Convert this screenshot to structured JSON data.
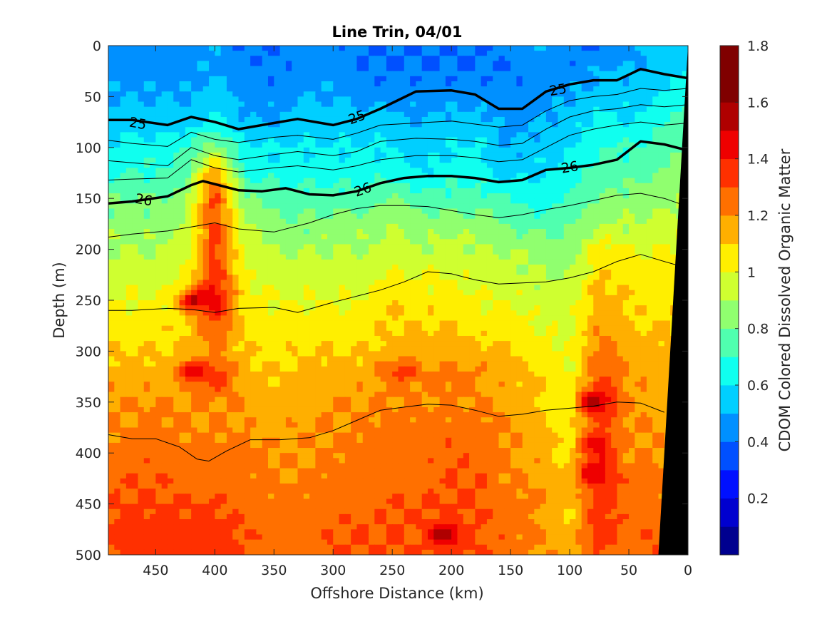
{
  "chart_data": {
    "type": "heatmap",
    "title": "Line Trin, 04/01",
    "xlabel": "Offshore Distance (km)",
    "ylabel": "Depth (m)",
    "xlim": [
      490,
      0
    ],
    "ylim": [
      0,
      500
    ],
    "x_reversed": true,
    "y_reversed": true,
    "xticks": [
      "450",
      "400",
      "350",
      "300",
      "250",
      "200",
      "150",
      "100",
      "50",
      "0"
    ],
    "xtick_values": [
      450,
      400,
      350,
      300,
      250,
      200,
      150,
      100,
      50,
      0
    ],
    "yticks": [
      "0",
      "50",
      "100",
      "150",
      "200",
      "250",
      "300",
      "350",
      "400",
      "450",
      "500"
    ],
    "ytick_values": [
      0,
      50,
      100,
      150,
      200,
      250,
      300,
      350,
      400,
      450,
      500
    ],
    "colorbar": {
      "label": "CDOM Colored Dissolved Organic Matter",
      "ticks": [
        "0.2",
        "0.4",
        "0.6",
        "0.8",
        "1",
        "1.2",
        "1.4",
        "1.6",
        "1.8"
      ],
      "tick_values": [
        0.2,
        0.4,
        0.6,
        0.8,
        1.0,
        1.2,
        1.4,
        1.6,
        1.8
      ],
      "range": [
        0,
        1.8
      ],
      "levels": [
        0,
        0.1,
        0.2,
        0.3,
        0.4,
        0.5,
        0.6,
        0.7,
        0.8,
        0.9,
        1.0,
        1.1,
        1.2,
        1.3,
        1.4,
        1.5,
        1.6,
        1.7,
        1.8
      ],
      "colors": [
        "#00008f",
        "#0000cf",
        "#0010ff",
        "#0050ff",
        "#0090ff",
        "#00cfff",
        "#10ffef",
        "#50ffaf",
        "#90ff6f",
        "#cfff30",
        "#ffef00",
        "#ffaf00",
        "#ff7000",
        "#ff3000",
        "#ef0000",
        "#af0000",
        "#800000",
        "#800000"
      ]
    },
    "distances_km": [
      0,
      25,
      50,
      75,
      100,
      125,
      150,
      175,
      200,
      225,
      250,
      275,
      300,
      325,
      350,
      375,
      400,
      425,
      450,
      475,
      490
    ],
    "depths_m": [
      0,
      25,
      50,
      75,
      100,
      125,
      150,
      175,
      200,
      225,
      250,
      275,
      300,
      325,
      350,
      375,
      400,
      425,
      450,
      475,
      500
    ],
    "cdom_values": [
      [
        0.55,
        0.55,
        0.45,
        0.4,
        0.4,
        0.5,
        0.45,
        0.4,
        0.4,
        0.4,
        0.4,
        0.4,
        0.45,
        0.45,
        0.4,
        0.4,
        0.5,
        0.45,
        0.45,
        0.45,
        0.45
      ],
      [
        0.6,
        0.55,
        0.5,
        0.5,
        0.45,
        0.45,
        0.4,
        0.4,
        0.4,
        0.4,
        0.4,
        0.4,
        0.45,
        0.45,
        0.4,
        0.45,
        0.5,
        0.45,
        0.45,
        0.45,
        0.45
      ],
      [
        0.7,
        0.6,
        0.55,
        0.55,
        0.5,
        0.45,
        0.45,
        0.45,
        0.45,
        0.45,
        0.45,
        0.45,
        0.5,
        0.5,
        0.45,
        0.45,
        0.55,
        0.5,
        0.5,
        0.5,
        0.5
      ],
      [
        0.75,
        0.7,
        0.6,
        0.65,
        0.55,
        0.5,
        0.45,
        0.55,
        0.55,
        0.5,
        0.55,
        0.55,
        0.55,
        0.55,
        0.5,
        0.5,
        0.65,
        0.55,
        0.55,
        0.55,
        0.55
      ],
      [
        0.8,
        0.75,
        0.7,
        0.7,
        0.6,
        0.55,
        0.5,
        0.6,
        0.6,
        0.55,
        0.6,
        0.6,
        0.6,
        0.6,
        0.6,
        0.65,
        0.85,
        0.7,
        0.65,
        0.65,
        0.6
      ],
      [
        0.85,
        0.8,
        0.75,
        0.75,
        0.65,
        0.6,
        0.55,
        0.65,
        0.65,
        0.6,
        0.65,
        0.65,
        0.65,
        0.65,
        0.65,
        0.7,
        1.2,
        0.75,
        0.7,
        0.7,
        0.7
      ],
      [
        0.9,
        0.85,
        0.85,
        0.8,
        0.7,
        0.65,
        0.7,
        0.75,
        0.75,
        0.75,
        0.8,
        0.75,
        0.75,
        0.75,
        0.75,
        0.8,
        1.35,
        0.85,
        0.8,
        0.8,
        0.8
      ],
      [
        0.95,
        0.95,
        0.9,
        0.9,
        0.8,
        0.75,
        0.8,
        0.85,
        0.85,
        0.85,
        0.9,
        0.85,
        0.85,
        0.8,
        0.85,
        0.9,
        1.35,
        0.9,
        0.85,
        0.85,
        0.85
      ],
      [
        1.0,
        1.0,
        1.0,
        1.05,
        0.85,
        0.85,
        0.9,
        0.9,
        0.95,
        0.9,
        0.95,
        0.9,
        0.9,
        0.9,
        0.9,
        0.95,
        1.35,
        0.95,
        0.9,
        0.9,
        0.9
      ],
      [
        1.05,
        1.05,
        1.05,
        1.1,
        0.9,
        0.9,
        0.95,
        0.95,
        1.0,
        1.0,
        1.0,
        0.95,
        0.95,
        0.95,
        0.95,
        1.0,
        1.4,
        1.0,
        0.95,
        0.95,
        0.95
      ],
      [
        1.1,
        1.05,
        1.1,
        1.15,
        0.95,
        0.95,
        1.0,
        1.0,
        1.05,
        1.05,
        1.1,
        1.0,
        1.0,
        1.0,
        1.0,
        1.05,
        1.5,
        1.05,
        1.0,
        1.0,
        1.0
      ],
      [
        1.1,
        1.1,
        1.1,
        1.2,
        0.95,
        1.0,
        1.05,
        1.05,
        1.1,
        1.1,
        1.1,
        1.05,
        1.05,
        1.05,
        1.05,
        1.1,
        1.3,
        1.1,
        1.05,
        1.05,
        1.05
      ],
      [
        1.1,
        1.15,
        1.15,
        1.25,
        1.0,
        1.05,
        1.1,
        1.15,
        1.15,
        1.15,
        1.15,
        1.1,
        1.1,
        1.1,
        1.05,
        1.1,
        1.2,
        1.1,
        1.1,
        1.1,
        1.1
      ],
      [
        1.1,
        1.15,
        1.2,
        1.3,
        1.0,
        1.1,
        1.15,
        1.2,
        1.25,
        1.2,
        1.25,
        1.15,
        1.15,
        1.15,
        1.1,
        1.15,
        1.4,
        1.15,
        1.15,
        1.15,
        1.15
      ],
      [
        1.1,
        1.15,
        1.2,
        1.45,
        1.0,
        1.1,
        1.15,
        1.2,
        1.2,
        1.2,
        1.2,
        1.2,
        1.2,
        1.15,
        1.15,
        1.2,
        1.2,
        1.2,
        1.2,
        1.2,
        1.2
      ],
      [
        1.1,
        1.2,
        1.2,
        1.3,
        1.05,
        1.15,
        1.2,
        1.25,
        1.25,
        1.25,
        1.25,
        1.2,
        1.2,
        1.2,
        1.15,
        1.2,
        1.2,
        1.2,
        1.25,
        1.2,
        1.2
      ],
      [
        1.1,
        1.2,
        1.2,
        1.4,
        1.05,
        1.15,
        1.2,
        1.25,
        1.3,
        1.25,
        1.25,
        1.25,
        1.2,
        1.2,
        1.2,
        1.25,
        1.25,
        1.25,
        1.25,
        1.25,
        1.25
      ],
      [
        1.1,
        1.25,
        1.25,
        1.4,
        1.1,
        1.2,
        1.2,
        1.3,
        1.3,
        1.25,
        1.25,
        1.25,
        1.25,
        1.2,
        1.2,
        1.25,
        1.25,
        1.25,
        1.3,
        1.3,
        1.25
      ],
      [
        1.1,
        1.25,
        1.25,
        1.35,
        1.1,
        1.2,
        1.25,
        1.3,
        1.3,
        1.3,
        1.3,
        1.25,
        1.25,
        1.25,
        1.25,
        1.25,
        1.3,
        1.3,
        1.3,
        1.3,
        1.3
      ],
      [
        1.1,
        1.3,
        1.25,
        1.4,
        1.1,
        1.2,
        1.25,
        1.3,
        1.35,
        1.3,
        1.3,
        1.3,
        1.3,
        1.25,
        1.25,
        1.3,
        1.35,
        1.35,
        1.35,
        1.35,
        1.3
      ],
      [
        1.1,
        1.3,
        1.25,
        1.3,
        1.15,
        1.2,
        1.25,
        1.3,
        1.35,
        1.3,
        1.3,
        1.3,
        1.3,
        1.25,
        1.25,
        1.3,
        1.35,
        1.35,
        1.35,
        1.35,
        1.3
      ]
    ],
    "hotspots": [
      {
        "x": 418,
        "y": 250,
        "value": 1.55
      },
      {
        "x": 418,
        "y": 320,
        "value": 1.5
      },
      {
        "x": 80,
        "y": 350,
        "value": 1.55
      },
      {
        "x": 80,
        "y": 390,
        "value": 1.45
      },
      {
        "x": 80,
        "y": 420,
        "value": 1.5
      },
      {
        "x": 207,
        "y": 480,
        "value": 1.55
      },
      {
        "x": 240,
        "y": 320,
        "value": 1.35
      },
      {
        "x": 450,
        "y": 480,
        "value": 1.4
      }
    ],
    "isopycnals": [
      {
        "label": "25",
        "bold": true,
        "label_x": [
          465,
          280,
          110
        ],
        "label_y": [
          76,
          70,
          43
        ],
        "x": [
          490,
          470,
          440,
          420,
          400,
          380,
          350,
          330,
          300,
          280,
          260,
          230,
          200,
          180,
          160,
          140,
          120,
          100,
          80,
          60,
          40,
          20,
          0
        ],
        "y": [
          73,
          73,
          78,
          70,
          75,
          82,
          76,
          72,
          78,
          72,
          62,
          45,
          44,
          48,
          62,
          62,
          45,
          38,
          34,
          34,
          23,
          28,
          32
        ]
      },
      {
        "label": "",
        "bold": false,
        "x": [
          490,
          470,
          440,
          420,
          400,
          380,
          350,
          330,
          300,
          280,
          260,
          230,
          200,
          180,
          160,
          140,
          120,
          100,
          80,
          60,
          40,
          20,
          0
        ],
        "y": [
          93,
          96,
          99,
          85,
          92,
          95,
          90,
          88,
          92,
          86,
          78,
          76,
          74,
          77,
          80,
          78,
          64,
          54,
          50,
          48,
          42,
          44,
          42
        ]
      },
      {
        "label": "",
        "bold": false,
        "x": [
          490,
          470,
          440,
          420,
          400,
          380,
          350,
          330,
          300,
          280,
          260,
          230,
          200,
          180,
          160,
          140,
          120,
          100,
          80,
          60,
          40,
          20,
          0
        ],
        "y": [
          113,
          115,
          118,
          100,
          108,
          112,
          107,
          104,
          108,
          104,
          94,
          91,
          92,
          94,
          98,
          96,
          82,
          70,
          64,
          62,
          58,
          60,
          58
        ]
      },
      {
        "label": "",
        "bold": false,
        "x": [
          490,
          470,
          440,
          420,
          400,
          380,
          350,
          330,
          300,
          280,
          260,
          230,
          200,
          180,
          160,
          140,
          120,
          100,
          80,
          60,
          40,
          20,
          0
        ],
        "y": [
          132,
          131,
          130,
          112,
          120,
          124,
          120,
          118,
          122,
          118,
          112,
          108,
          108,
          110,
          114,
          112,
          100,
          88,
          82,
          78,
          75,
          78,
          76
        ]
      },
      {
        "label": "26",
        "bold": true,
        "label_x": [
          460,
          275,
          100
        ],
        "label_y": [
          151,
          141,
          119
        ],
        "x": [
          490,
          470,
          440,
          420,
          410,
          400,
          380,
          360,
          340,
          320,
          300,
          280,
          260,
          240,
          220,
          200,
          180,
          160,
          140,
          120,
          100,
          80,
          60,
          40,
          20,
          0
        ],
        "y": [
          155,
          153,
          148,
          137,
          133,
          136,
          142,
          143,
          140,
          146,
          147,
          143,
          135,
          130,
          128,
          128,
          130,
          134,
          132,
          122,
          120,
          117,
          112,
          94,
          97,
          103
        ]
      },
      {
        "label": "",
        "bold": false,
        "x": [
          490,
          470,
          440,
          420,
          400,
          380,
          350,
          320,
          300,
          280,
          260,
          240,
          220,
          200,
          180,
          160,
          140,
          120,
          100,
          80,
          60,
          40,
          20,
          5
        ],
        "y": [
          188,
          185,
          182,
          178,
          174,
          180,
          183,
          174,
          166,
          160,
          157,
          157,
          158,
          162,
          166,
          169,
          166,
          161,
          157,
          152,
          147,
          145,
          150,
          156
        ]
      },
      {
        "label": "",
        "bold": false,
        "x": [
          490,
          470,
          440,
          420,
          400,
          380,
          350,
          330,
          300,
          280,
          260,
          240,
          220,
          200,
          180,
          160,
          140,
          120,
          100,
          80,
          60,
          40,
          20,
          8
        ],
        "y": [
          260,
          260,
          258,
          259,
          262,
          258,
          257,
          262,
          252,
          246,
          240,
          232,
          222,
          224,
          230,
          234,
          233,
          232,
          228,
          222,
          212,
          205,
          212,
          216
        ]
      },
      {
        "label": "",
        "bold": false,
        "x": [
          490,
          470,
          450,
          430,
          415,
          405,
          390,
          370,
          345,
          320,
          300,
          280,
          260,
          240,
          220,
          200,
          180,
          160,
          140,
          120,
          100,
          80,
          60,
          40,
          20
        ],
        "y": [
          382,
          386,
          386,
          394,
          406,
          408,
          398,
          387,
          387,
          385,
          378,
          368,
          358,
          355,
          352,
          353,
          358,
          364,
          362,
          358,
          356,
          354,
          350,
          351,
          360
        ]
      }
    ],
    "seafloor": {
      "x": [
        0,
        25,
        0
      ],
      "y": [
        0,
        500,
        500
      ]
    }
  }
}
